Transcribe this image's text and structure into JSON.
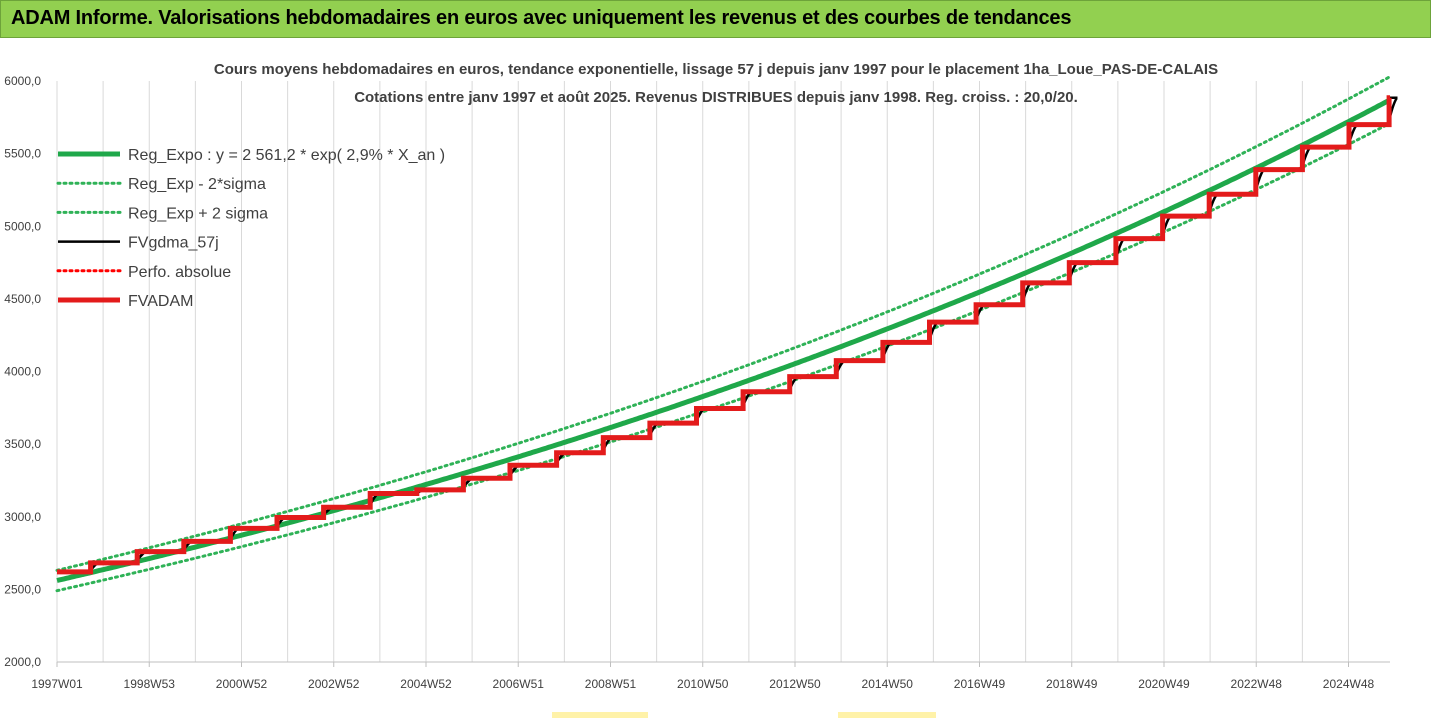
{
  "banner": {
    "title": "ADAM Informe. Valorisations hebdomadaires en euros avec uniquement les revenus et des courbes de tendances"
  },
  "colors": {
    "banner_bg": "#92d050",
    "reg_expo": "#1fa84a",
    "sigma": "#2fb257",
    "fvgdma": "#000000",
    "perfo": "#ff0000",
    "fvadam": "#e31b1b",
    "grid": "#d9d9d9"
  },
  "chart_data": {
    "type": "line",
    "title": [
      "Cours moyens hebdomadaires en euros, tendance exponentielle, lissage 57 j depuis janv 1997 pour le placement 1ha_Loue_PAS-DE-CALAIS",
      "Cotations entre janv 1997 et août 2025. Revenus DISTRIBUES depuis janv 1998. Reg. croiss. : 20,0/20."
    ],
    "xlabel": "",
    "ylabel": "",
    "ylim": [
      2000,
      6000
    ],
    "yticks": [
      "2000,0",
      "2500,0",
      "3000,0",
      "3500,0",
      "4000,0",
      "4500,0",
      "5000,0",
      "5500,0",
      "6000,0"
    ],
    "x_tick_labels": [
      "1997W01",
      "1998W53",
      "2000W52",
      "2002W52",
      "2004W52",
      "2006W51",
      "2008W51",
      "2010W50",
      "2012W50",
      "2014W50",
      "2016W49",
      "2018W49",
      "2020W49",
      "2022W48",
      "2024W48"
    ],
    "x_range_years": [
      1997.0,
      2025.6
    ],
    "grid": "vertical",
    "legend_position": "top-left",
    "series": [
      {
        "name": "Reg_Expo : y = 2 561,2 * exp( 2,9% *  X_an )",
        "kind": "exp",
        "a": 2561.2,
        "rate": 0.029,
        "style": "solid-thick",
        "color_key": "reg_expo"
      },
      {
        "name": "Reg_Exp - 2*sigma",
        "kind": "exp",
        "a": 2491.0,
        "rate": 0.029,
        "style": "dotted",
        "color_key": "sigma"
      },
      {
        "name": "Reg_Exp + 2 sigma",
        "kind": "exp",
        "a": 2631.0,
        "rate": 0.029,
        "style": "dotted",
        "color_key": "sigma"
      },
      {
        "name": "FVgdma_57j",
        "kind": "smooth-step",
        "style": "solid",
        "color_key": "fvgdma"
      },
      {
        "name": "Perfo. absolue",
        "kind": "none",
        "style": "dotted",
        "color_key": "perfo"
      },
      {
        "name": "FVADAM",
        "kind": "step",
        "style": "solid-thick",
        "color_key": "fvadam",
        "step_years": [
          1997,
          1998,
          1999,
          2000,
          2001,
          2002,
          2003,
          2004,
          2005,
          2006,
          2007,
          2008,
          2009,
          2010,
          2011,
          2012,
          2013,
          2014,
          2015,
          2016,
          2017,
          2018,
          2019,
          2020,
          2021,
          2022,
          2023,
          2024,
          2025
        ],
        "step_values": [
          2620,
          2682,
          2760,
          2830,
          2920,
          2995,
          3065,
          3160,
          3185,
          3265,
          3355,
          3440,
          3545,
          3645,
          3745,
          3860,
          3965,
          4075,
          4200,
          4340,
          4460,
          4610,
          4750,
          4915,
          5070,
          5220,
          5390,
          5545,
          5700
        ],
        "last_value": 5885,
        "x_end_year": 2025.6
      }
    ]
  }
}
